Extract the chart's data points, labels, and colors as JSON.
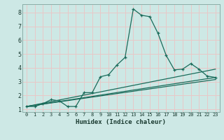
{
  "xlabel": "Humidex (Indice chaleur)",
  "bg_color": "#cde8e5",
  "grid_color": "#e8c8c8",
  "line_color": "#1a6b5a",
  "xlim": [
    -0.5,
    23.5
  ],
  "ylim": [
    0.8,
    8.6
  ],
  "xticks": [
    0,
    1,
    2,
    3,
    4,
    5,
    6,
    7,
    8,
    9,
    10,
    11,
    12,
    13,
    14,
    15,
    16,
    17,
    18,
    19,
    20,
    21,
    22,
    23
  ],
  "yticks": [
    1,
    2,
    3,
    4,
    5,
    6,
    7,
    8
  ],
  "series1_x": [
    0,
    1,
    2,
    3,
    4,
    5,
    6,
    7,
    8,
    9,
    10,
    11,
    12,
    13,
    14,
    15,
    16,
    17,
    18,
    19,
    20,
    21,
    22,
    23
  ],
  "series1_y": [
    1.2,
    1.2,
    1.4,
    1.7,
    1.6,
    1.2,
    1.2,
    2.2,
    2.2,
    3.35,
    3.5,
    4.2,
    4.75,
    8.25,
    7.8,
    7.7,
    6.5,
    4.9,
    3.85,
    3.9,
    4.3,
    3.9,
    3.4,
    3.3
  ],
  "series2_x": [
    0,
    23
  ],
  "series2_y": [
    1.2,
    3.9
  ],
  "series3_x": [
    0,
    23
  ],
  "series3_y": [
    1.2,
    3.3
  ],
  "series4_x": [
    0,
    23
  ],
  "series4_y": [
    1.2,
    3.15
  ]
}
